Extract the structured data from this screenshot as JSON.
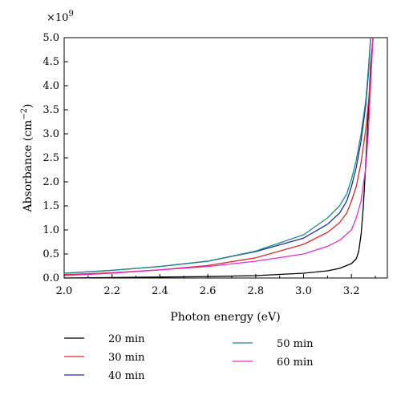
{
  "chart_data": {
    "type": "line",
    "title": "",
    "xlabel": "Photon energy (eV)",
    "ylabel_main": "Absorbance (cm",
    "ylabel_exp": "−2",
    "ylabel_close": ")",
    "y_multiplier_base": "×10",
    "y_multiplier_exp": "9",
    "xlim": [
      2.0,
      3.35
    ],
    "ylim": [
      0.0,
      5.0
    ],
    "x_ticks": [
      "2.0",
      "2.2",
      "2.4",
      "2.6",
      "2.8",
      "3.0",
      "3.2"
    ],
    "y_ticks": [
      "0.0",
      "0.5",
      "1.0",
      "1.5",
      "2.0",
      "2.5",
      "3.0",
      "3.5",
      "4.0",
      "4.5",
      "5.0"
    ],
    "grid": false,
    "legend_position": "bottom",
    "series": [
      {
        "name": "20 min",
        "color": "#000000",
        "x": [
          2.0,
          2.2,
          2.4,
          2.6,
          2.8,
          3.0,
          3.1,
          3.15,
          3.2,
          3.22,
          3.23,
          3.24,
          3.25,
          3.26,
          3.27,
          3.28,
          3.29
        ],
        "y": [
          0.0,
          0.01,
          0.02,
          0.03,
          0.05,
          0.1,
          0.15,
          0.2,
          0.3,
          0.4,
          0.55,
          0.9,
          1.5,
          2.4,
          3.4,
          4.4,
          5.0
        ]
      },
      {
        "name": "30 min",
        "color": "#d62b2b",
        "x": [
          2.0,
          2.2,
          2.4,
          2.6,
          2.8,
          3.0,
          3.1,
          3.15,
          3.18,
          3.2,
          3.22,
          3.24,
          3.26,
          3.27,
          3.28,
          3.29
        ],
        "y": [
          0.07,
          0.11,
          0.17,
          0.26,
          0.42,
          0.7,
          0.95,
          1.15,
          1.35,
          1.6,
          1.9,
          2.4,
          3.1,
          3.6,
          4.2,
          5.0
        ]
      },
      {
        "name": "40 min",
        "color": "#1f2fa8",
        "x": [
          2.0,
          2.2,
          2.4,
          2.6,
          2.8,
          3.0,
          3.1,
          3.15,
          3.18,
          3.2,
          3.22,
          3.24,
          3.26,
          3.27,
          3.28
        ],
        "y": [
          0.1,
          0.16,
          0.24,
          0.35,
          0.55,
          0.83,
          1.12,
          1.35,
          1.6,
          1.9,
          2.3,
          2.85,
          3.6,
          4.2,
          5.0
        ]
      },
      {
        "name": "50 min",
        "color": "#1a8a8a",
        "x": [
          2.0,
          2.2,
          2.4,
          2.6,
          2.8,
          3.0,
          3.1,
          3.15,
          3.18,
          3.2,
          3.22,
          3.24,
          3.26,
          3.27,
          3.28
        ],
        "y": [
          0.1,
          0.16,
          0.24,
          0.35,
          0.56,
          0.9,
          1.25,
          1.5,
          1.75,
          2.05,
          2.45,
          3.0,
          3.7,
          4.3,
          5.0
        ]
      },
      {
        "name": "60 min",
        "color": "#e62bd0",
        "x": [
          2.0,
          2.2,
          2.4,
          2.6,
          2.8,
          3.0,
          3.1,
          3.15,
          3.2,
          3.22,
          3.24,
          3.26,
          3.27,
          3.28,
          3.29
        ],
        "y": [
          0.05,
          0.1,
          0.17,
          0.24,
          0.35,
          0.5,
          0.66,
          0.78,
          1.0,
          1.25,
          1.6,
          2.3,
          3.0,
          4.0,
          5.0
        ]
      }
    ]
  }
}
